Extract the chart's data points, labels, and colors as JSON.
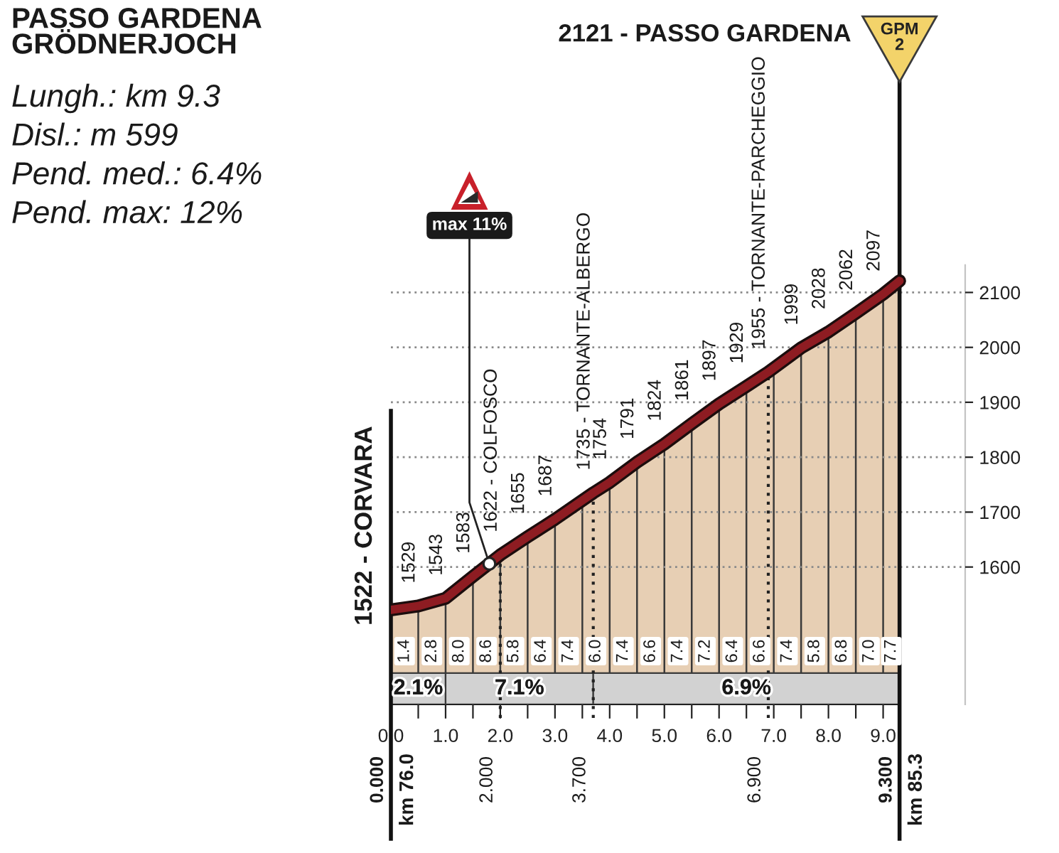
{
  "chart_data": {
    "type": "area",
    "title": "PASSO GARDENA\nGRÖDNERJOCH",
    "x": [
      0,
      0.5,
      1.0,
      1.5,
      2.0,
      2.5,
      3.0,
      3.7,
      4.0,
      4.5,
      5.0,
      5.5,
      6.0,
      6.5,
      6.9,
      7.5,
      8.0,
      8.5,
      9.0,
      9.3
    ],
    "series": [
      {
        "color": "#8e1c22",
        "values": [
          1522,
          1529,
          1543,
          1583,
          1622,
          1655,
          1687,
          1735,
          1754,
          1791,
          1824,
          1861,
          1897,
          1929,
          1955,
          1999,
          2028,
          2062,
          2097,
          2121
        ],
        "value_labels": [
          "1522 - CORVARA",
          "1529",
          "1543",
          "1583",
          "1622 - COLFOSCO",
          "1655",
          "1687",
          "1735 - TORNANTE-ALBERGO",
          "1754",
          "1791",
          "1824",
          "1861",
          "1897",
          "1929",
          "1955 - TORNANTE-PARCHEGGIO",
          "1999",
          "2028",
          "2062",
          "2097",
          null
        ]
      }
    ],
    "xlim": [
      0,
      10.5
    ],
    "xticks": [
      {
        "value": 0,
        "label": "0.0"
      },
      {
        "value": 0.5,
        "label": null
      },
      {
        "value": 1,
        "label": "1.0"
      },
      {
        "value": 1.5,
        "label": null
      },
      {
        "value": 2,
        "label": "2.0"
      },
      {
        "value": 2.5,
        "label": null
      },
      {
        "value": 3,
        "label": "3.0"
      },
      {
        "value": 3.5,
        "label": null
      },
      {
        "value": 4,
        "label": "4.0"
      },
      {
        "value": 4.5,
        "label": null
      },
      {
        "value": 5,
        "label": "5.0"
      },
      {
        "value": 5.5,
        "label": null
      },
      {
        "value": 6,
        "label": "6.0"
      },
      {
        "value": 6.5,
        "label": null
      },
      {
        "value": 7,
        "label": "7.0"
      },
      {
        "value": 7.5,
        "label": null
      },
      {
        "value": 8,
        "label": "8.0"
      },
      {
        "value": 8.5,
        "label": null
      },
      {
        "value": 9,
        "label": "9.0"
      }
    ],
    "ylim": [
      1350,
      2150
    ],
    "yticks": [
      1600,
      1700,
      1800,
      1900,
      2000,
      2100
    ],
    "grid": true,
    "ref_lines": [
      {
        "axis": "x",
        "value": 0,
        "label": "0.000",
        "line_style": "solid",
        "color": "#111111"
      },
      {
        "axis": "x",
        "value": 2.0,
        "label": "2.000",
        "line_style": "dotted",
        "color": "#222222"
      },
      {
        "axis": "x",
        "value": 3.7,
        "label": "3.700",
        "line_style": "dotted",
        "color": "#222222"
      },
      {
        "axis": "x",
        "value": 6.9,
        "label": "6.900",
        "line_style": "dotted",
        "color": "#222222"
      },
      {
        "axis": "x",
        "value": 9.3,
        "label": "9.300",
        "line_style": "solid",
        "color": "#111111"
      }
    ],
    "bands": [
      {
        "axis": "x",
        "from": 0,
        "to": 1.0,
        "label": "2.1%",
        "color": "#d2d2d2"
      },
      {
        "axis": "x",
        "from": 1.0,
        "to": 3.7,
        "label": "7.1%",
        "color": "#d2d2d2"
      },
      {
        "axis": "x",
        "from": 3.7,
        "to": 9.3,
        "label": "6.9%",
        "color": "#d2d2d2"
      }
    ],
    "annotations": [
      "Lungh.: km 9.3",
      "Disl.: m 599",
      "Pend. med.: 6.4%",
      "Pend. max: 12%",
      "2121 - PASSO GARDENA",
      "GPM\n2",
      "km 76.0",
      "km 85.3",
      {
        "text": "max 11%",
        "x": 1.8,
        "y": 1606
      },
      {
        "text": "1.4",
        "x": 0.25
      },
      {
        "text": "2.8",
        "x": 0.75
      },
      {
        "text": "8.0",
        "x": 1.25
      },
      {
        "text": "8.6",
        "x": 1.75
      },
      {
        "text": "5.8",
        "x": 2.25
      },
      {
        "text": "6.4",
        "x": 2.75
      },
      {
        "text": "7.4",
        "x": 3.25
      },
      {
        "text": "6.0",
        "x": 3.75
      },
      {
        "text": "7.4",
        "x": 4.25
      },
      {
        "text": "6.6",
        "x": 4.75
      },
      {
        "text": "7.4",
        "x": 5.25
      },
      {
        "text": "7.2",
        "x": 5.75
      },
      {
        "text": "6.4",
        "x": 6.25
      },
      {
        "text": "6.6",
        "x": 6.75
      },
      {
        "text": "7.4",
        "x": 7.25
      },
      {
        "text": "5.8",
        "x": 7.75
      },
      {
        "text": "6.8",
        "x": 8.25
      },
      {
        "text": "7.0",
        "x": 8.75
      },
      {
        "text": "7.7",
        "x": 9.15
      }
    ]
  }
}
